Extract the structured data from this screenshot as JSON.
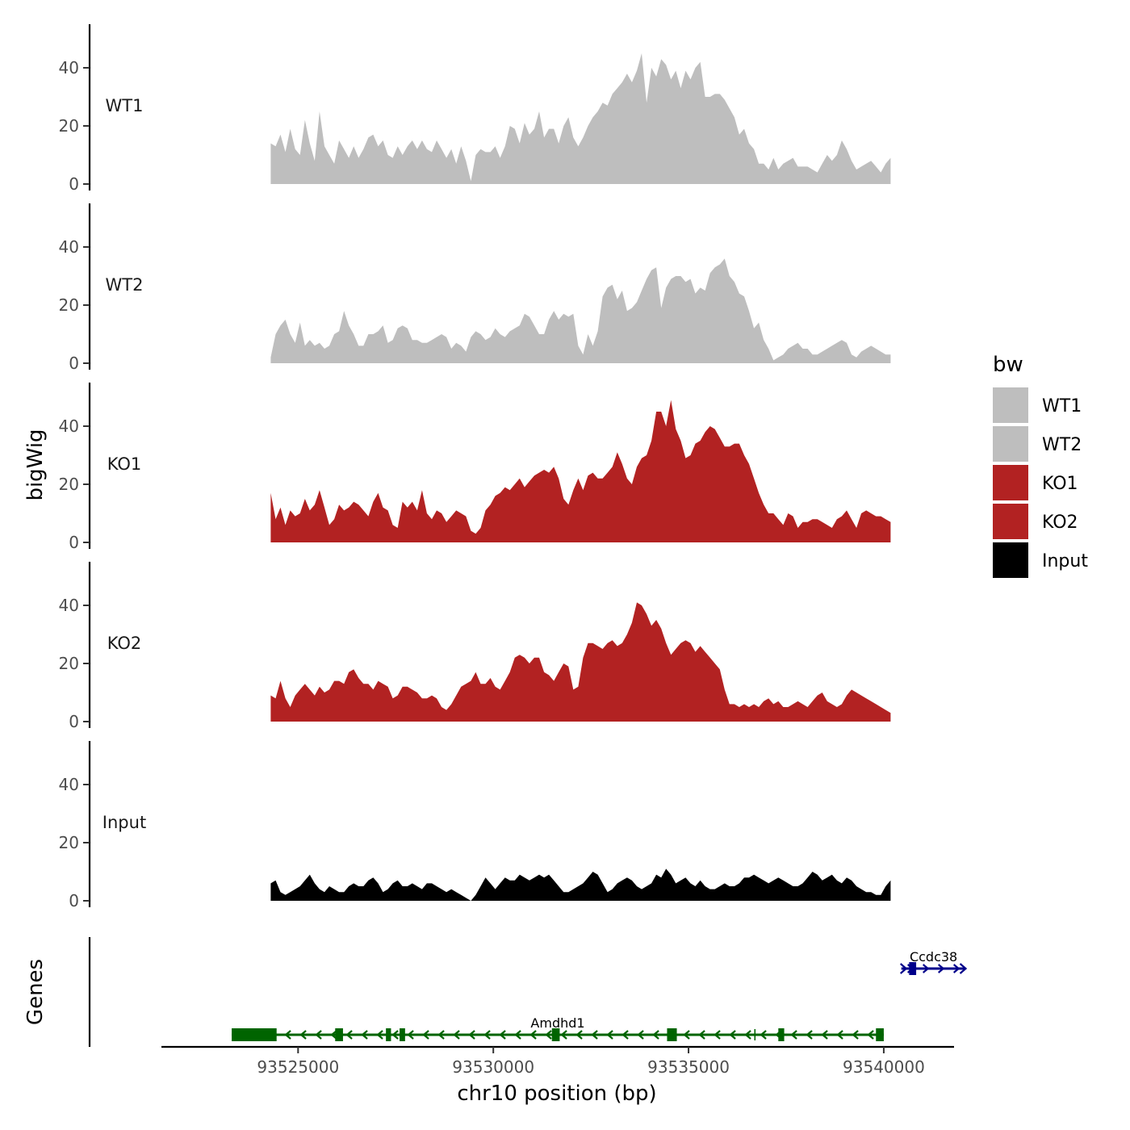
{
  "chart_data": {
    "type": "area",
    "chromosome": "chr10",
    "xlabel": "chr10 position (bp)",
    "ylabel": "bigWig",
    "genes_label": "Genes",
    "xlim": [
      93521500,
      93541800
    ],
    "ylim": [
      0,
      55
    ],
    "x_ticks": [
      93525000,
      93530000,
      93535000,
      93540000
    ],
    "x_tick_labels": [
      "93525000",
      "93530000",
      "93535000",
      "93540000"
    ],
    "y_ticks": [
      0,
      20,
      40
    ],
    "y_tick_labels": [
      "0",
      "20",
      "40"
    ],
    "grid": false,
    "legend": {
      "title": "bw",
      "position": "right",
      "entries": [
        {
          "label": "WT1",
          "color": "#bebebe"
        },
        {
          "label": "WT2",
          "color": "#bebebe"
        },
        {
          "label": "KO1",
          "color": "#b22222"
        },
        {
          "label": "KO2",
          "color": "#b22222"
        },
        {
          "label": "Input",
          "color": "#000000"
        }
      ]
    },
    "x_start": 93524300,
    "x_step": 125,
    "series": [
      {
        "name": "WT1",
        "color": "#bebebe",
        "values": [
          14,
          13,
          17,
          11,
          19,
          12,
          10,
          22,
          14,
          8,
          25,
          13,
          10,
          7,
          15,
          12,
          9,
          13,
          9,
          12,
          16,
          17,
          13,
          15,
          10,
          9,
          13,
          10,
          13,
          15,
          12,
          15,
          12,
          11,
          15,
          12,
          9,
          12,
          7,
          13,
          8,
          1,
          10,
          12,
          11,
          11,
          13,
          9,
          13,
          20,
          19,
          14,
          21,
          17,
          19,
          25,
          16,
          19,
          19,
          14,
          20,
          23,
          16,
          13,
          16,
          20,
          23,
          25,
          28,
          27,
          31,
          33,
          35,
          38,
          35,
          39,
          45,
          28,
          40,
          37,
          43,
          41,
          36,
          39,
          33,
          39,
          36,
          40,
          42,
          30,
          30,
          31,
          31,
          29,
          26,
          23,
          17,
          19,
          14,
          12,
          7,
          7,
          5,
          9,
          5,
          7,
          8,
          9,
          6,
          6,
          6,
          5,
          4,
          7,
          10,
          8,
          10,
          15,
          12,
          8,
          5,
          6,
          7,
          8,
          6,
          4,
          7,
          9
        ]
      },
      {
        "name": "WT2",
        "color": "#bebebe",
        "values": [
          2,
          10,
          13,
          15,
          10,
          7,
          14,
          6,
          8,
          6,
          7,
          5,
          6,
          10,
          11,
          18,
          13,
          10,
          6,
          6,
          10,
          10,
          11,
          13,
          7,
          8,
          12,
          13,
          12,
          8,
          8,
          7,
          7,
          8,
          9,
          10,
          9,
          5,
          7,
          6,
          4,
          9,
          11,
          10,
          8,
          9,
          12,
          10,
          9,
          11,
          12,
          13,
          17,
          16,
          13,
          10,
          10,
          15,
          18,
          15,
          17,
          16,
          17,
          6,
          3,
          10,
          6,
          11,
          23,
          26,
          27,
          22,
          25,
          18,
          19,
          21,
          25,
          29,
          32,
          33,
          19,
          26,
          29,
          30,
          30,
          28,
          29,
          24,
          26,
          25,
          31,
          33,
          34,
          36,
          30,
          28,
          24,
          23,
          18,
          12,
          14,
          8,
          5,
          1,
          2,
          3,
          5,
          6,
          7,
          5,
          5,
          3,
          3,
          4,
          5,
          6,
          7,
          8,
          7,
          3,
          2,
          4,
          5,
          6,
          5,
          4,
          3,
          3
        ]
      },
      {
        "name": "KO1",
        "color": "#b22222",
        "values": [
          17,
          8,
          12,
          6,
          11,
          9,
          10,
          15,
          11,
          13,
          18,
          12,
          6,
          8,
          13,
          11,
          12,
          14,
          13,
          11,
          9,
          14,
          17,
          12,
          11,
          6,
          5,
          14,
          12,
          14,
          11,
          18,
          10,
          8,
          11,
          10,
          7,
          9,
          11,
          10,
          9,
          4,
          3,
          5,
          11,
          13,
          16,
          17,
          19,
          18,
          20,
          22,
          19,
          21,
          23,
          24,
          25,
          24,
          26,
          22,
          15,
          13,
          18,
          22,
          18,
          23,
          24,
          22,
          22,
          24,
          26,
          31,
          27,
          22,
          20,
          26,
          29,
          30,
          35,
          45,
          45,
          40,
          49,
          39,
          35,
          29,
          30,
          34,
          35,
          38,
          40,
          39,
          36,
          33,
          33,
          34,
          34,
          30,
          27,
          22,
          17,
          13,
          10,
          10,
          8,
          6,
          10,
          9,
          5,
          7,
          7,
          8,
          8,
          7,
          6,
          5,
          8,
          9,
          11,
          8,
          5,
          10,
          11,
          10,
          9,
          9,
          8,
          7
        ]
      },
      {
        "name": "KO2",
        "color": "#b22222",
        "values": [
          9,
          8,
          14,
          8,
          5,
          9,
          11,
          13,
          11,
          9,
          12,
          10,
          11,
          14,
          14,
          13,
          17,
          18,
          15,
          13,
          13,
          11,
          14,
          13,
          12,
          8,
          9,
          12,
          12,
          11,
          10,
          8,
          8,
          9,
          8,
          5,
          4,
          6,
          9,
          12,
          13,
          14,
          17,
          13,
          13,
          15,
          12,
          11,
          14,
          17,
          22,
          23,
          22,
          20,
          22,
          22,
          17,
          16,
          14,
          17,
          20,
          19,
          11,
          12,
          22,
          27,
          27,
          26,
          25,
          27,
          28,
          26,
          27,
          30,
          34,
          41,
          40,
          37,
          33,
          35,
          32,
          27,
          23,
          25,
          27,
          28,
          27,
          24,
          26,
          24,
          22,
          20,
          18,
          11,
          6,
          6,
          5,
          6,
          5,
          6,
          5,
          7,
          8,
          6,
          7,
          5,
          5,
          6,
          7,
          6,
          5,
          7,
          9,
          10,
          7,
          6,
          5,
          6,
          9,
          11,
          10,
          9,
          8,
          7,
          6,
          5,
          4,
          3
        ]
      },
      {
        "name": "Input",
        "color": "#000000",
        "values": [
          6,
          7,
          3,
          2,
          3,
          4,
          5,
          7,
          9,
          6,
          4,
          3,
          5,
          4,
          3,
          3,
          5,
          6,
          5,
          5,
          7,
          8,
          6,
          3,
          4,
          6,
          7,
          5,
          5,
          6,
          5,
          4,
          6,
          6,
          5,
          4,
          3,
          4,
          3,
          2,
          1,
          0,
          2,
          5,
          8,
          6,
          4,
          6,
          8,
          7,
          7,
          9,
          8,
          7,
          8,
          9,
          8,
          9,
          7,
          5,
          3,
          3,
          4,
          5,
          6,
          8,
          10,
          9,
          6,
          3,
          4,
          6,
          7,
          8,
          7,
          5,
          4,
          5,
          6,
          9,
          8,
          11,
          9,
          6,
          7,
          8,
          6,
          5,
          7,
          5,
          4,
          4,
          5,
          6,
          5,
          5,
          6,
          8,
          8,
          9,
          8,
          7,
          6,
          7,
          8,
          7,
          6,
          5,
          5,
          6,
          8,
          10,
          9,
          7,
          8,
          9,
          7,
          6,
          8,
          7,
          5,
          4,
          3,
          3,
          2,
          2,
          5,
          7
        ]
      }
    ],
    "genes": [
      {
        "name": "Ccdc38",
        "color": "#00008b",
        "strand": "+",
        "start": 93540450,
        "end": 93542100,
        "exons": [
          [
            93540650,
            93540830
          ]
        ],
        "label_position": "above"
      },
      {
        "name": "Amdhd1",
        "color": "#006400",
        "strand": "-",
        "start": 93523300,
        "end": 93540000,
        "exons": [
          [
            93523300,
            93524450
          ],
          [
            93525950,
            93526150
          ],
          [
            93527250,
            93527380
          ],
          [
            93527600,
            93527740
          ],
          [
            93531500,
            93531700
          ],
          [
            93534450,
            93534700
          ],
          [
            93537300,
            93537450
          ],
          [
            93539800,
            93540000
          ]
        ],
        "introns_marks": [
          93536700
        ],
        "label_position": "above"
      }
    ]
  }
}
